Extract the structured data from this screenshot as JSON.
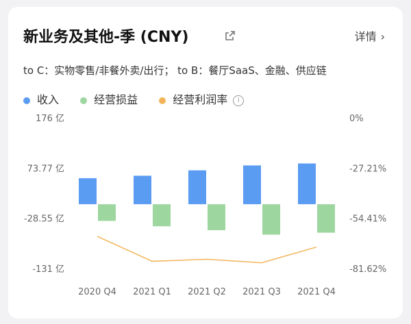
{
  "header": {
    "title": "新业务及其他-季 (CNY)",
    "detail_label": "详情",
    "subtitle": "to C：实物零售/非餐外卖/出行； to B：餐厅SaaS、金融、供应链"
  },
  "legend": {
    "revenue": "收入",
    "operating_pl": "经营损益",
    "operating_margin": "经营利润率"
  },
  "colors": {
    "revenue": "#5b9cf3",
    "operating_pl": "#9ed6a0",
    "operating_margin": "#f2b457"
  },
  "chart_data": {
    "type": "bar",
    "categories": [
      "2020 Q4",
      "2021 Q1",
      "2021 Q2",
      "2021 Q3",
      "2021 Q4"
    ],
    "series": [
      {
        "name": "收入",
        "axis": "left",
        "values": [
          53,
          58,
          69,
          79,
          83
        ]
      },
      {
        "name": "经营损益",
        "axis": "left",
        "values": [
          -34,
          -45,
          -53,
          -62,
          -58
        ]
      },
      {
        "name": "经营利润率",
        "axis": "right",
        "type": "line",
        "values": [
          -64.2,
          -77.7,
          -76.6,
          -78.5,
          -70.0
        ]
      }
    ],
    "left_axis": {
      "ticks": [
        "176 亿",
        "73.77 亿",
        "-28.55 亿",
        "-131 亿"
      ],
      "range": [
        -131,
        176
      ]
    },
    "right_axis": {
      "ticks": [
        "0%",
        "-27.21%",
        "-54.41%",
        "-81.62%"
      ],
      "range": [
        -81.62,
        0
      ]
    }
  }
}
